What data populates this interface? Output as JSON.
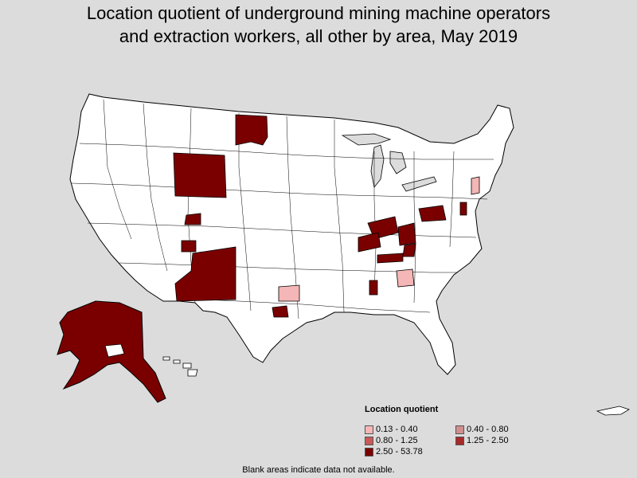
{
  "title_line1": "Location quotient of underground mining machine operators",
  "title_line2": "and extraction workers, all other by area, May 2019",
  "legend": {
    "title": "Location quotient",
    "items": [
      {
        "label": "0.13 - 0.40",
        "color": "#f4b6b6"
      },
      {
        "label": "0.40 - 0.80",
        "color": "#d08f8f"
      },
      {
        "label": "0.80 - 1.25",
        "color": "#c85a5a"
      },
      {
        "label": "1.25 - 2.50",
        "color": "#a62a2a"
      },
      {
        "label": "2.50 - 53.78",
        "color": "#7a0000"
      }
    ]
  },
  "footnote": "Blank areas indicate data not available.",
  "colors": {
    "background": "#dcdcdc",
    "blank_area": "#ffffff",
    "border": "#000000",
    "high": "#7a0000",
    "low": "#f4b6b6"
  }
}
